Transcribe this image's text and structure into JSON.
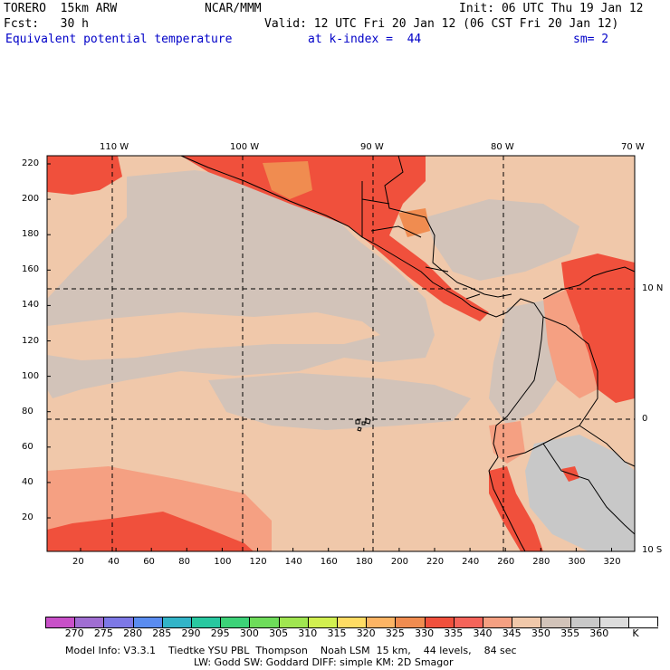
{
  "header": {
    "model": "TORERO  15km ARW",
    "center": "NCAR/MMM",
    "init": "Init: 06 UTC Thu 19 Jan 12",
    "fcst": "Fcst:   30 h",
    "valid": "Valid: 12 UTC Fri 20 Jan 12 (06 CST Fri 20 Jan 12)",
    "field": "Equivalent potential temperature",
    "level": "at k-index =  44",
    "smooth": "sm= 2"
  },
  "map": {
    "lon_labels": [
      "110 W",
      "100 W",
      "90 W",
      "80 W",
      "70 W"
    ],
    "lat_labels": [
      "10 N",
      "0",
      "10 S"
    ],
    "y_ticks": [
      "220",
      "200",
      "180",
      "160",
      "140",
      "120",
      "100",
      "80",
      "60",
      "40",
      "20"
    ],
    "x_ticks": [
      "20",
      "40",
      "60",
      "80",
      "100",
      "120",
      "140",
      "160",
      "180",
      "200",
      "220",
      "240",
      "260",
      "280",
      "300",
      "320"
    ]
  },
  "colorbar": {
    "labels": [
      "270",
      "275",
      "280",
      "285",
      "290",
      "295",
      "300",
      "305",
      "310",
      "315",
      "320",
      "325",
      "330",
      "335",
      "340",
      "345",
      "350",
      "355",
      "360"
    ],
    "unit": "K",
    "colors": [
      "#c850c8",
      "#a06ed2",
      "#7d78e6",
      "#5a8cf0",
      "#32b4c8",
      "#28c8a0",
      "#3cd278",
      "#6edc5a",
      "#a0e650",
      "#d2f050",
      "#ffdc64",
      "#fcb464",
      "#f08c50",
      "#f0503c",
      "#f5645a",
      "#f5a082",
      "#f0c8aa",
      "#d2c3b9",
      "#c8c8c8",
      "#dcdcdc",
      "#ffffff"
    ]
  },
  "footer": {
    "line1": "Model Info: V3.3.1    Tiedtke YSU PBL  Thompson    Noah LSM  15 km,    44 levels,    84 sec",
    "line2": "LW: Godd SW: Goddard DIFF: simple KM: 2D Smagor"
  },
  "colors": {
    "peach": "#f0c8aa",
    "grey": "#d2c3b9",
    "light_grey": "#c8c8c8",
    "salmon": "#f5a082",
    "red": "#f0503c",
    "orange": "#f08c50"
  }
}
